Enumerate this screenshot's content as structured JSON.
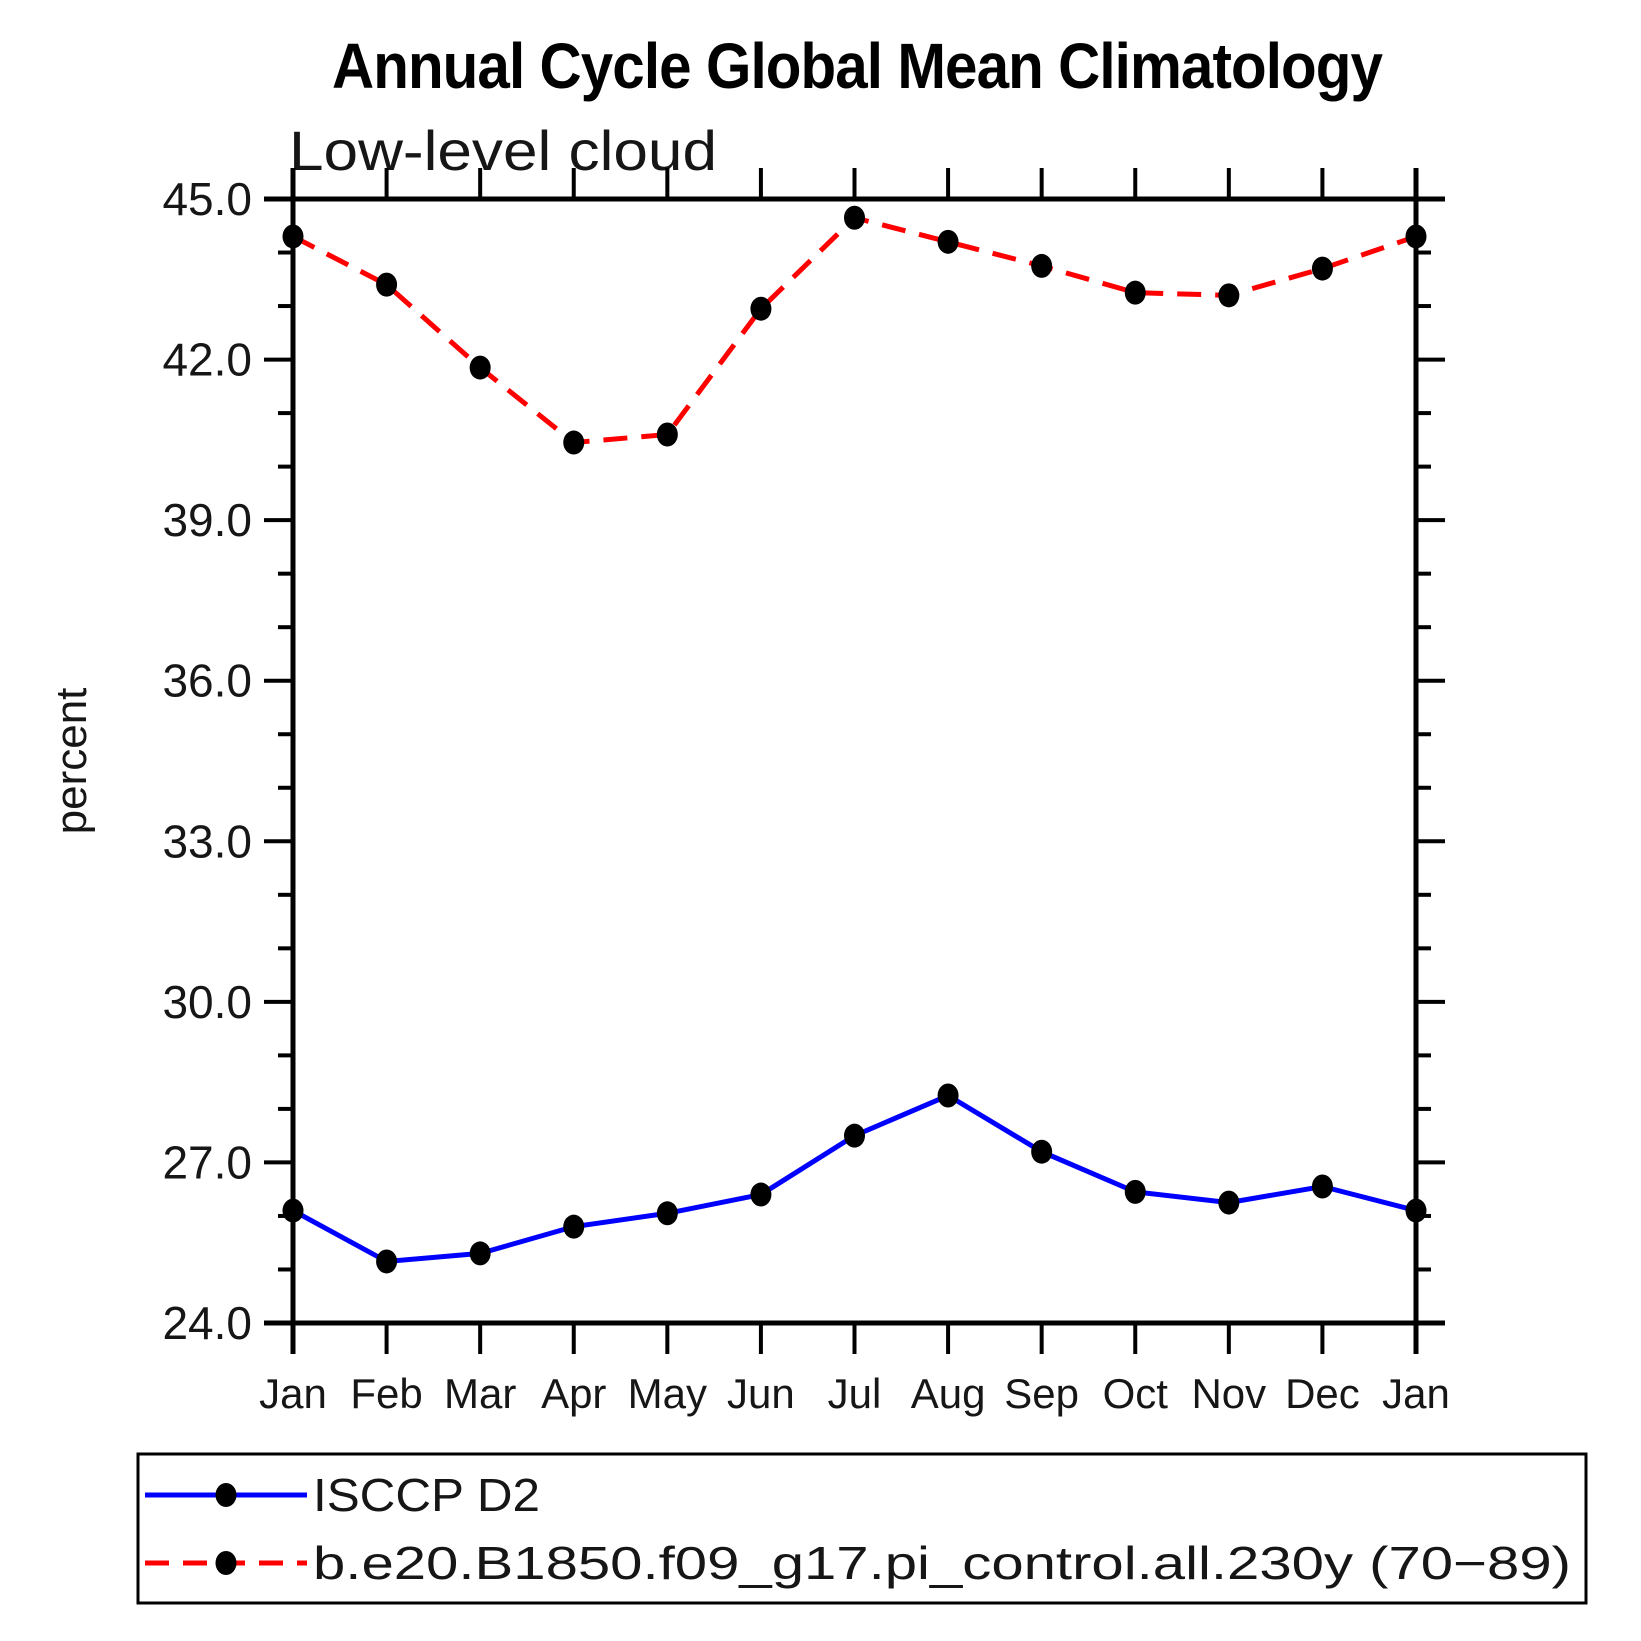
{
  "page": {
    "background_color": "#ffffff",
    "axis_color": "#000000",
    "marker_color": "#000000"
  },
  "chart_data": {
    "type": "line",
    "title": "Annual Cycle Global Mean Climatology",
    "subtitle": "Low-level cloud",
    "xlabel": "",
    "ylabel": "percent",
    "ylim": [
      24.0,
      45.0
    ],
    "ytick_major_interval": 3.0,
    "ytick_minor_interval": 1.0,
    "ytick_labels": [
      "24.0",
      "27.0",
      "30.0",
      "33.0",
      "36.0",
      "39.0",
      "42.0",
      "45.0"
    ],
    "grid": false,
    "categories": [
      "Jan",
      "Feb",
      "Mar",
      "Apr",
      "May",
      "Jun",
      "Jul",
      "Aug",
      "Sep",
      "Oct",
      "Nov",
      "Dec",
      "Jan"
    ],
    "series": [
      {
        "name": "ISCCP D2",
        "color": "#0000ff",
        "line_style": "solid",
        "marker": "filled-circle",
        "marker_color": "#000000",
        "values": [
          26.1,
          25.15,
          25.3,
          25.8,
          26.05,
          26.4,
          27.5,
          28.25,
          27.2,
          26.45,
          26.25,
          26.55,
          26.1
        ]
      },
      {
        "name": "b.e20.B1850.f09_g17.pi_control.all.230y (70−89)",
        "color": "#ff0000",
        "line_style": "dashed",
        "marker": "filled-circle",
        "marker_color": "#000000",
        "values": [
          44.3,
          43.4,
          41.85,
          40.45,
          40.6,
          42.95,
          44.65,
          44.2,
          43.75,
          43.25,
          43.2,
          43.7,
          44.3
        ]
      }
    ],
    "legend": {
      "position": "bottom-left",
      "border": true
    }
  }
}
